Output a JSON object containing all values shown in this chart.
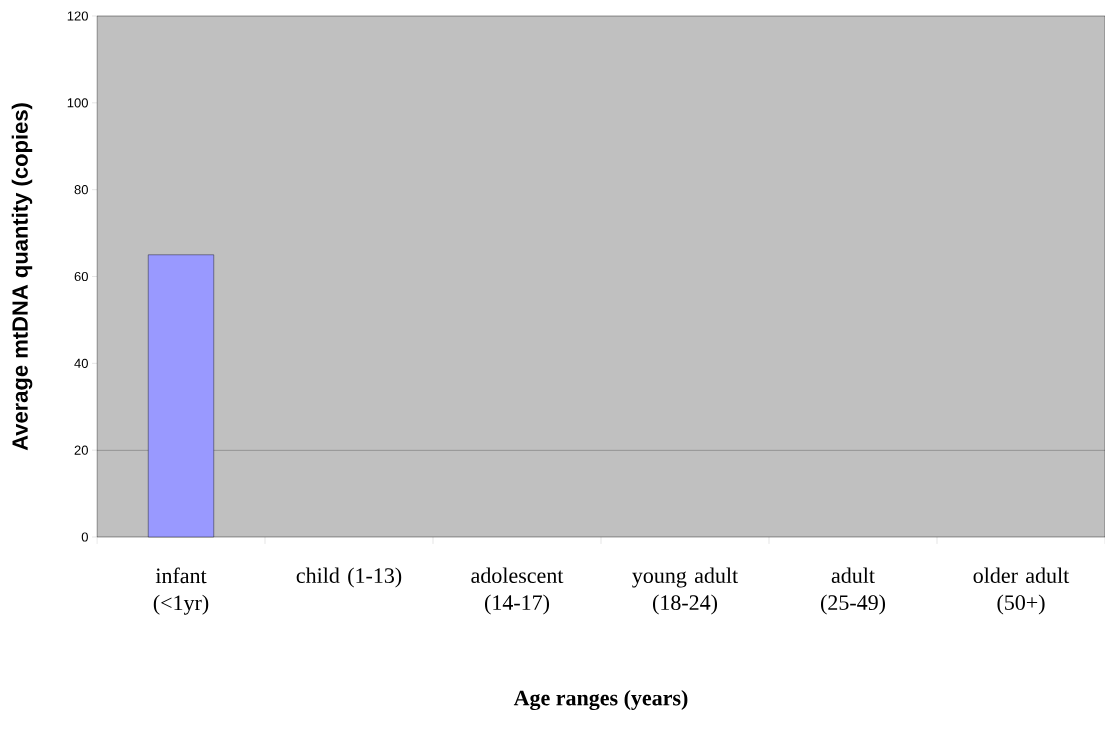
{
  "chart_data": {
    "type": "bar",
    "xlabel": "Age ranges (years)",
    "ylabel": "Average mtDNA quantity (copies)",
    "categories": [
      "infant (<1yr)",
      "child (1-13)",
      "adolescent (14-17)",
      "young adult (18-24)",
      "adult (25-49)",
      "older adult (50+)"
    ],
    "values": [
      65,
      0,
      0,
      0,
      0,
      0
    ],
    "color": "#9999ff",
    "ylim": [
      0,
      120
    ],
    "yticks": [
      0,
      20,
      40,
      60,
      80,
      100,
      120
    ],
    "ref_lines": [
      {
        "axis": "y",
        "value": 20,
        "color": "#000000"
      }
    ]
  }
}
